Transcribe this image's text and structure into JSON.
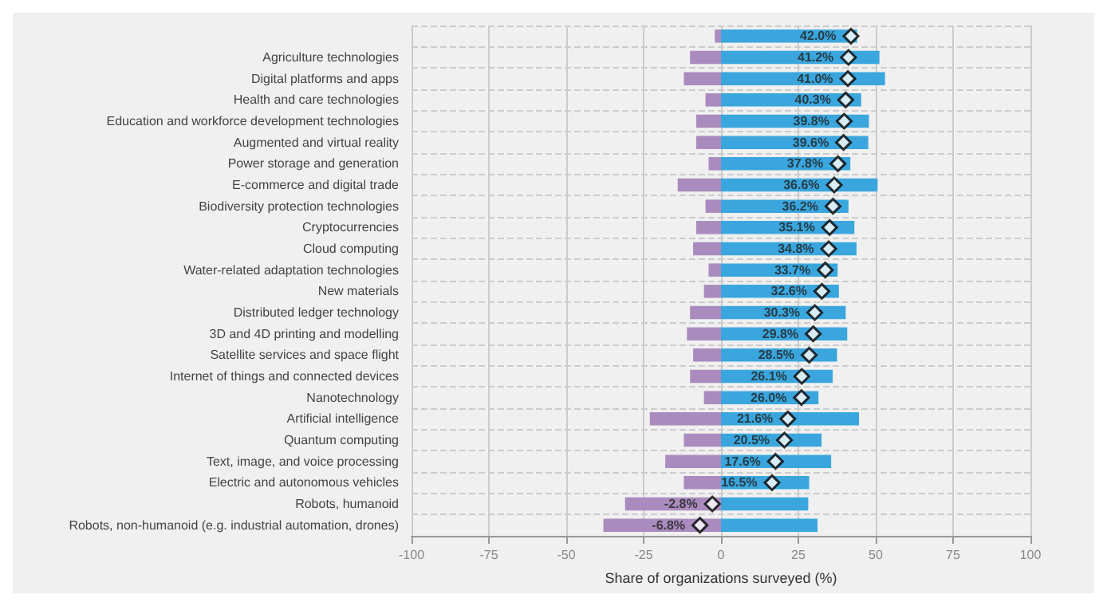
{
  "chart_data": {
    "type": "bar",
    "orientation": "horizontal",
    "stacked": true,
    "xlabel": "Share of organizations surveyed (%)",
    "categories": [
      null,
      "Agriculture technologies",
      "Digital platforms and apps",
      "Health and care technologies",
      "Education and workforce development technologies",
      "Augmented and virtual reality",
      "Power storage and generation",
      "E-commerce and digital trade",
      "Biodiversity protection technologies",
      "Cryptocurrencies",
      "Cloud computing",
      "Water-related adaptation technologies",
      "New materials",
      "Distributed ledger technology",
      "3D and 4D printing and modelling",
      "Satellite services and space flight",
      "Internet of things and connected devices",
      "Nanotechnology",
      "Artificial intelligence",
      "Quantum computing",
      "Text, image, and voice processing",
      "Electric and autonomous vehicles",
      "Robots, humanoid",
      "Robots, non-humanoid (e.g. industrial automation, drones)"
    ],
    "series": [
      {
        "color": "#a98bbd",
        "values": [
          -2,
          -10,
          -12,
          -5,
          -8,
          -8,
          -4,
          -14,
          -5,
          -8,
          -9,
          -4,
          -5.5,
          -10,
          -11,
          -9,
          -10,
          -5.5,
          -23,
          -12,
          -18,
          -12,
          -31,
          -38
        ]
      },
      {
        "color": "#3aa6dd",
        "values": [
          44,
          51.2,
          53,
          45.3,
          47.8,
          47.6,
          41.8,
          50.6,
          41.2,
          43.1,
          43.8,
          37.7,
          38.1,
          40.3,
          40.8,
          37.5,
          36.1,
          31.5,
          44.6,
          32.5,
          35.6,
          28.5,
          28.2,
          31.2
        ]
      },
      {
        "type": "scatter",
        "marker": "diamond",
        "color": "#ffffff",
        "values": [
          42.0,
          41.2,
          41.0,
          40.3,
          39.8,
          39.6,
          37.8,
          36.6,
          36.2,
          35.1,
          34.8,
          33.7,
          32.6,
          30.3,
          29.8,
          28.5,
          26.1,
          26.0,
          21.6,
          20.5,
          17.6,
          16.5,
          -2.8,
          -6.8
        ],
        "value_labels": [
          "42.0%",
          "41.2%",
          "41.0%",
          "40.3%",
          "39.8%",
          "39.6%",
          "37.8%",
          "36.6%",
          "36.2%",
          "35.1%",
          "34.8%",
          "33.7%",
          "32.6%",
          "30.3%",
          "29.8%",
          "28.5%",
          "26.1%",
          "26.0%",
          "21.6%",
          "20.5%",
          "17.6%",
          "16.5%",
          "-2.8%",
          "-6.8%"
        ]
      }
    ],
    "xlim": [
      -100,
      100
    ],
    "xticks": [
      -100,
      -75,
      -50,
      -25,
      0,
      25,
      50,
      75,
      100
    ],
    "grid": true
  }
}
